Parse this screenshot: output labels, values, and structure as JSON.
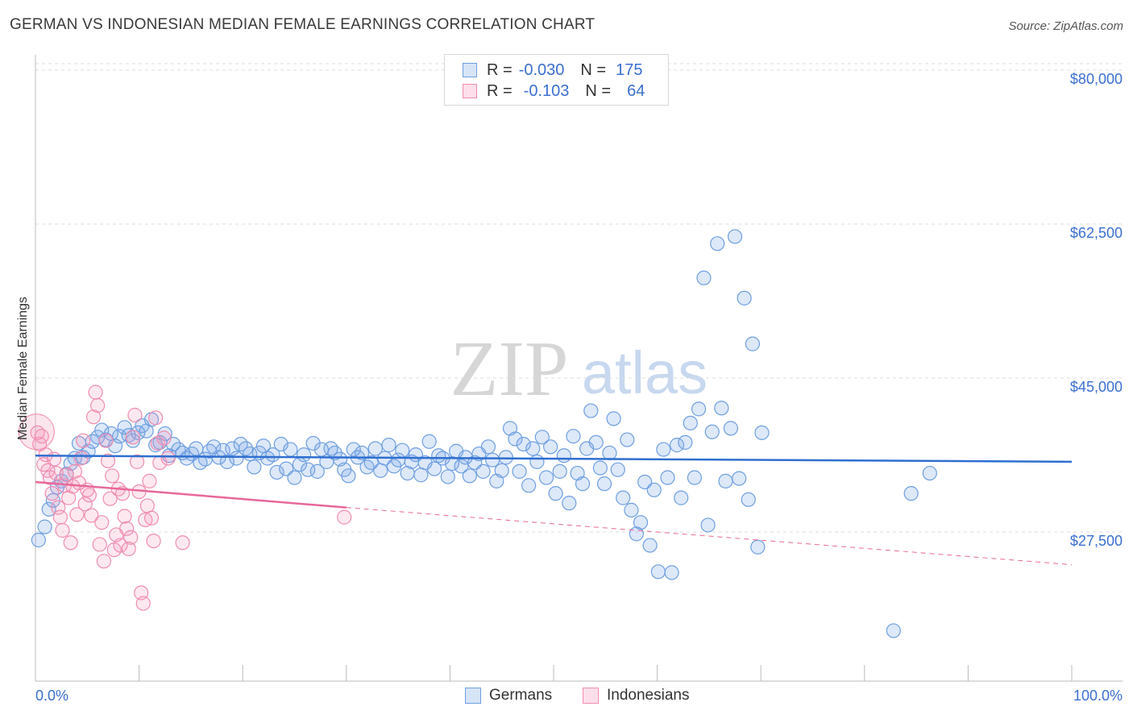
{
  "title": "GERMAN VS INDONESIAN MEDIAN FEMALE EARNINGS CORRELATION CHART",
  "source": "Source: ZipAtlas.com",
  "watermark": {
    "zip": "ZIP",
    "atlas": "atlas"
  },
  "legend": {
    "rows": [
      {
        "r_label": "R =",
        "r_value": "-0.030",
        "n_label": "N =",
        "n_value": "175",
        "color": "#6f9fe0"
      },
      {
        "r_label": "R =",
        "r_value": "-0.103",
        "n_label": "N =",
        "n_value": "64",
        "color": "#f08db0"
      }
    ]
  },
  "bottom_legend": {
    "germans": "Germans",
    "indonesians": "Indonesians"
  },
  "colors": {
    "blue": "#6f9fe0",
    "blue_fill": "rgba(120,165,230,0.25)",
    "blue_line": "#2f6fd0",
    "pink": "#f08db0",
    "pink_fill": "rgba(245,150,185,0.22)",
    "pink_line": "#e8689a",
    "axis_label": "#3b6fcf",
    "grid": "#dddddd"
  },
  "chart_data": {
    "type": "scatter",
    "title": "GERMAN VS INDONESIAN MEDIAN FEMALE EARNINGS CORRELATION CHART",
    "xlabel": "",
    "ylabel": "Median Female Earnings",
    "x_tick_labels": [
      "0.0%",
      "100.0%"
    ],
    "y_tick_labels": [
      "$80,000",
      "$62,500",
      "$45,000",
      "$27,500"
    ],
    "y_ticks": [
      80000,
      62500,
      45000,
      27500
    ],
    "xlim": [
      0,
      100
    ],
    "ylim": [
      12000,
      82000
    ],
    "grid": true,
    "legend_position": "top-center",
    "series": [
      {
        "name": "Germans",
        "r": -0.03,
        "n": 175,
        "trend": {
          "x0": 0,
          "y0": 37100,
          "x1": 100,
          "y1": 36400
        },
        "points": [
          [
            0.3,
            27500
          ],
          [
            0.9,
            29000
          ],
          [
            1.3,
            31000
          ],
          [
            1.7,
            32000
          ],
          [
            2.1,
            33500
          ],
          [
            2.5,
            34200
          ],
          [
            3,
            35000
          ],
          [
            3.4,
            36200
          ],
          [
            3.8,
            36800
          ],
          [
            4.2,
            38500
          ],
          [
            4.6,
            36900
          ],
          [
            5.1,
            37600
          ],
          [
            5.5,
            38700
          ],
          [
            6,
            39200
          ],
          [
            6.4,
            40000
          ],
          [
            6.8,
            38900
          ],
          [
            7.3,
            39600
          ],
          [
            7.7,
            38200
          ],
          [
            8.1,
            39300
          ],
          [
            8.6,
            40300
          ],
          [
            9,
            39400
          ],
          [
            9.4,
            38800
          ],
          [
            9.9,
            39700
          ],
          [
            10.3,
            40500
          ],
          [
            10.7,
            39900
          ],
          [
            11.2,
            41200
          ],
          [
            11.6,
            38300
          ],
          [
            12,
            38600
          ],
          [
            12.5,
            39600
          ],
          [
            12.9,
            37100
          ],
          [
            13.3,
            38400
          ],
          [
            13.8,
            37800
          ],
          [
            14.2,
            37400
          ],
          [
            14.6,
            36800
          ],
          [
            15.1,
            37300
          ],
          [
            15.5,
            37900
          ],
          [
            15.9,
            36300
          ],
          [
            16.4,
            36700
          ],
          [
            16.8,
            37600
          ],
          [
            17.2,
            38100
          ],
          [
            17.7,
            36900
          ],
          [
            18.1,
            37700
          ],
          [
            18.5,
            36400
          ],
          [
            19,
            37900
          ],
          [
            19.4,
            36800
          ],
          [
            19.8,
            38400
          ],
          [
            20.3,
            37900
          ],
          [
            20.7,
            37300
          ],
          [
            21.1,
            35800
          ],
          [
            21.6,
            37400
          ],
          [
            22,
            38200
          ],
          [
            22.4,
            36800
          ],
          [
            22.9,
            37200
          ],
          [
            23.3,
            35200
          ],
          [
            23.7,
            38400
          ],
          [
            24.2,
            35600
          ],
          [
            24.6,
            37800
          ],
          [
            25,
            34600
          ],
          [
            25.5,
            36100
          ],
          [
            25.9,
            37200
          ],
          [
            26.3,
            35500
          ],
          [
            26.8,
            38500
          ],
          [
            27.2,
            35300
          ],
          [
            27.6,
            37800
          ],
          [
            28.1,
            36400
          ],
          [
            28.5,
            37900
          ],
          [
            28.9,
            37400
          ],
          [
            29.4,
            36700
          ],
          [
            29.8,
            35500
          ],
          [
            30.2,
            34800
          ],
          [
            30.7,
            37800
          ],
          [
            31.1,
            36900
          ],
          [
            31.5,
            37400
          ],
          [
            32,
            35800
          ],
          [
            32.4,
            36300
          ],
          [
            32.8,
            37900
          ],
          [
            33.3,
            35400
          ],
          [
            33.7,
            36800
          ],
          [
            34.1,
            38300
          ],
          [
            34.6,
            35900
          ],
          [
            35,
            36600
          ],
          [
            35.4,
            37700
          ],
          [
            35.9,
            35100
          ],
          [
            36.3,
            36400
          ],
          [
            36.7,
            37200
          ],
          [
            37.2,
            34900
          ],
          [
            37.6,
            36300
          ],
          [
            38,
            38700
          ],
          [
            38.5,
            35600
          ],
          [
            38.9,
            37100
          ],
          [
            39.3,
            36800
          ],
          [
            39.8,
            34700
          ],
          [
            40.2,
            36200
          ],
          [
            40.6,
            37600
          ],
          [
            41.1,
            35900
          ],
          [
            41.5,
            36900
          ],
          [
            41.9,
            34800
          ],
          [
            42.4,
            36300
          ],
          [
            42.8,
            37300
          ],
          [
            43.2,
            35300
          ],
          [
            43.7,
            38100
          ],
          [
            44.1,
            36600
          ],
          [
            44.5,
            34200
          ],
          [
            45,
            35400
          ],
          [
            45.4,
            36900
          ],
          [
            45.8,
            40200
          ],
          [
            46.3,
            39000
          ],
          [
            46.7,
            35300
          ],
          [
            47.1,
            38400
          ],
          [
            47.6,
            33700
          ],
          [
            48,
            37900
          ],
          [
            48.4,
            36400
          ],
          [
            48.9,
            39200
          ],
          [
            49.3,
            34600
          ],
          [
            49.7,
            38100
          ],
          [
            50.2,
            32800
          ],
          [
            50.6,
            35300
          ],
          [
            51,
            37100
          ],
          [
            51.5,
            31700
          ],
          [
            51.9,
            39300
          ],
          [
            52.3,
            35100
          ],
          [
            52.8,
            33900
          ],
          [
            53.2,
            37900
          ],
          [
            53.6,
            42200
          ],
          [
            54.1,
            38600
          ],
          [
            54.5,
            35700
          ],
          [
            54.9,
            33900
          ],
          [
            55.4,
            37400
          ],
          [
            55.8,
            41300
          ],
          [
            56.2,
            35500
          ],
          [
            56.7,
            32300
          ],
          [
            57.1,
            38900
          ],
          [
            57.5,
            30900
          ],
          [
            58,
            28200
          ],
          [
            58.4,
            29500
          ],
          [
            58.8,
            34100
          ],
          [
            59.3,
            26900
          ],
          [
            59.7,
            33200
          ],
          [
            60.1,
            23900
          ],
          [
            60.6,
            37800
          ],
          [
            61,
            34600
          ],
          [
            61.4,
            23800
          ],
          [
            61.9,
            38300
          ],
          [
            62.3,
            32300
          ],
          [
            62.7,
            38600
          ],
          [
            63.2,
            40800
          ],
          [
            63.6,
            34600
          ],
          [
            64,
            42400
          ],
          [
            64.5,
            57300
          ],
          [
            64.9,
            29200
          ],
          [
            65.3,
            39800
          ],
          [
            65.8,
            61200
          ],
          [
            66.2,
            42500
          ],
          [
            66.6,
            34200
          ],
          [
            67.1,
            40200
          ],
          [
            67.5,
            62000
          ],
          [
            67.9,
            34500
          ],
          [
            68.4,
            55000
          ],
          [
            68.8,
            32100
          ],
          [
            69.2,
            49800
          ],
          [
            69.7,
            26700
          ],
          [
            70.1,
            39700
          ],
          [
            82.8,
            17200
          ],
          [
            84.5,
            32800
          ],
          [
            86.3,
            35100
          ]
        ]
      },
      {
        "name": "Indonesians",
        "r": -0.103,
        "n": 64,
        "trend": {
          "x0": 0,
          "y0": 34100,
          "x1": 30,
          "y1": 31200,
          "dash_to_x": 100,
          "dash_to_y": 24700
        },
        "points": [
          [
            0.2,
            39700
          ],
          [
            0.4,
            38400
          ],
          [
            0.6,
            39300
          ],
          [
            0.8,
            36100
          ],
          [
            1,
            37200
          ],
          [
            1.2,
            35400
          ],
          [
            1.4,
            34600
          ],
          [
            1.6,
            32800
          ],
          [
            1.8,
            36700
          ],
          [
            2,
            35100
          ],
          [
            2.2,
            31200
          ],
          [
            2.4,
            30100
          ],
          [
            2.6,
            28600
          ],
          [
            2.8,
            33700
          ],
          [
            3,
            34900
          ],
          [
            3.2,
            32300
          ],
          [
            3.4,
            27200
          ],
          [
            3.6,
            33600
          ],
          [
            3.8,
            35300
          ],
          [
            4,
            30400
          ],
          [
            4.2,
            34000
          ],
          [
            4.4,
            36800
          ],
          [
            4.6,
            38800
          ],
          [
            4.8,
            31600
          ],
          [
            5,
            33200
          ],
          [
            5.2,
            32600
          ],
          [
            5.4,
            30300
          ],
          [
            5.6,
            41500
          ],
          [
            5.8,
            44300
          ],
          [
            6,
            42800
          ],
          [
            6.2,
            27000
          ],
          [
            6.4,
            29500
          ],
          [
            6.6,
            25100
          ],
          [
            6.8,
            38800
          ],
          [
            7,
            36500
          ],
          [
            7.2,
            32200
          ],
          [
            7.4,
            34800
          ],
          [
            7.6,
            26400
          ],
          [
            7.8,
            28100
          ],
          [
            8,
            33300
          ],
          [
            8.2,
            26900
          ],
          [
            8.4,
            32800
          ],
          [
            8.6,
            30200
          ],
          [
            8.8,
            28800
          ],
          [
            9,
            26500
          ],
          [
            9.2,
            27800
          ],
          [
            9.4,
            39200
          ],
          [
            9.6,
            41700
          ],
          [
            9.8,
            36400
          ],
          [
            10,
            33000
          ],
          [
            10.2,
            21500
          ],
          [
            10.4,
            20300
          ],
          [
            10.6,
            29800
          ],
          [
            10.8,
            31400
          ],
          [
            11,
            34200
          ],
          [
            11.2,
            30000
          ],
          [
            11.4,
            27400
          ],
          [
            11.6,
            41400
          ],
          [
            11.8,
            38500
          ],
          [
            12,
            36300
          ],
          [
            12.4,
            39100
          ],
          [
            12.8,
            36800
          ],
          [
            29.8,
            30100
          ],
          [
            14.2,
            27200
          ]
        ]
      }
    ]
  }
}
